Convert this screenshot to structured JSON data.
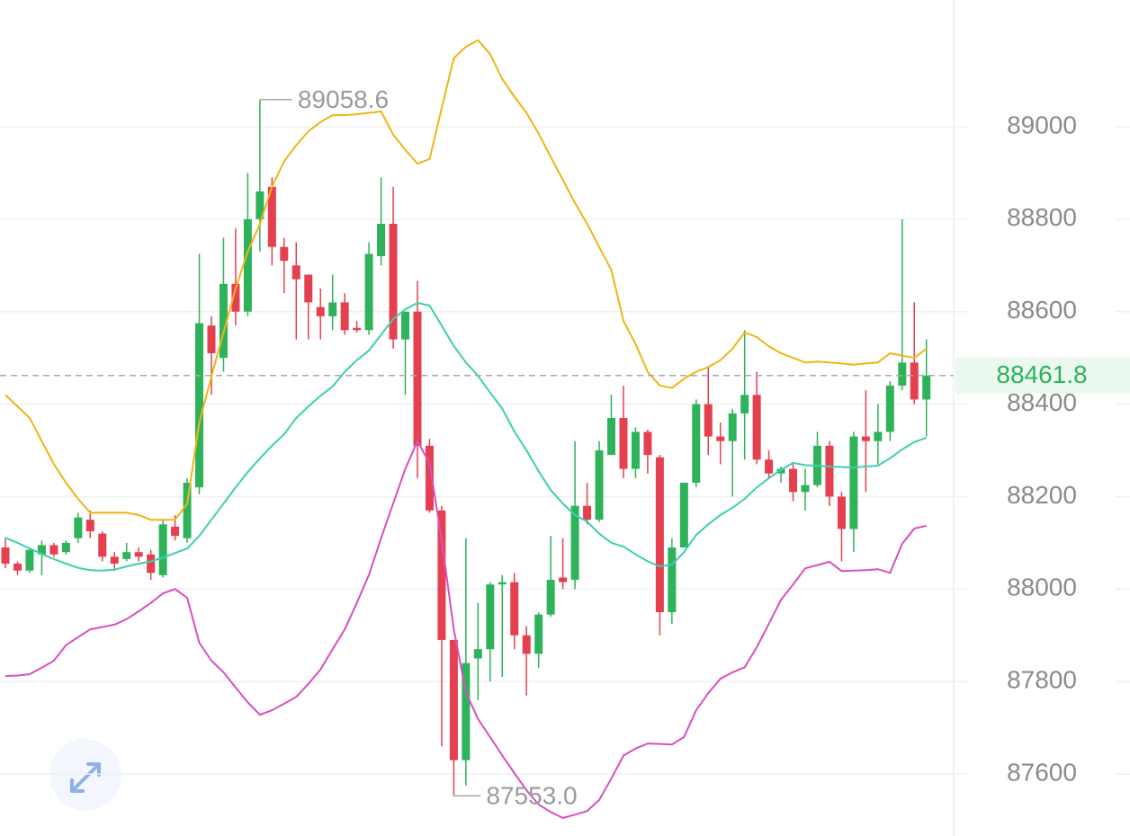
{
  "chart_data": {
    "type": "candlestick",
    "up_color": "#2eb35a",
    "down_color": "#e5404f",
    "ylim": [
      87466,
      89274
    ],
    "yticks": [
      87600,
      87800,
      88000,
      88200,
      88400,
      88600,
      88800,
      89000
    ],
    "grid": true,
    "open": [
      88090,
      88055,
      88040,
      88075,
      88095,
      88080,
      88110,
      88150,
      88120,
      88070,
      88065,
      88080,
      88075,
      88030,
      88135,
      88110,
      88220,
      88570,
      88500,
      88660,
      88600,
      88800,
      88870,
      88740,
      88700,
      88680,
      88610,
      88590,
      88620,
      88565,
      88560,
      88720,
      88790,
      88540,
      88600,
      88310,
      88170,
      87890,
      87630,
      87850,
      87870,
      88010,
      88015,
      87900,
      87860,
      87945,
      88025,
      88020,
      88180,
      88150,
      88290,
      88370,
      88260,
      88340,
      88285,
      87950,
      88090,
      88230,
      88400,
      88330,
      88320,
      88380,
      88420,
      88280,
      88250,
      88260,
      88210,
      88225,
      88310,
      88200,
      88130,
      88330,
      88320,
      88340,
      88440,
      88490,
      88410
    ],
    "high": [
      88110,
      88060,
      88090,
      88105,
      88100,
      88105,
      88165,
      88170,
      88125,
      88080,
      88100,
      88090,
      88085,
      88150,
      88160,
      88240,
      88725,
      88590,
      88760,
      88780,
      88900,
      89058.6,
      88890,
      88760,
      88750,
      88680,
      88650,
      88680,
      88640,
      88580,
      88750,
      88890,
      88870,
      88600,
      88667,
      88325,
      88180,
      87890,
      88110,
      87970,
      88015,
      88030,
      88035,
      87920,
      87950,
      88115,
      88110,
      88320,
      88230,
      88320,
      88420,
      88440,
      88350,
      88345,
      88290,
      88110,
      88230,
      88410,
      88480,
      88360,
      88390,
      88560,
      88470,
      88300,
      88265,
      88270,
      88260,
      88340,
      88320,
      88210,
      88340,
      88430,
      88400,
      88450,
      88800,
      88620,
      88540
    ],
    "low": [
      88045,
      88030,
      88035,
      88030,
      88070,
      88075,
      88100,
      88110,
      88060,
      88040,
      88060,
      88060,
      88020,
      88025,
      88105,
      88100,
      88205,
      88420,
      88470,
      88570,
      88590,
      88730,
      88700,
      88640,
      88540,
      88540,
      88540,
      88560,
      88550,
      88555,
      88550,
      88700,
      88520,
      88420,
      88240,
      88165,
      87660,
      87553,
      87575,
      87760,
      87800,
      87810,
      87870,
      87770,
      87830,
      87940,
      88000,
      88000,
      88140,
      88145,
      88290,
      88240,
      88240,
      88250,
      87900,
      87925,
      88090,
      88220,
      88290,
      88270,
      88200,
      88280,
      88270,
      88240,
      88230,
      88190,
      88170,
      88220,
      88180,
      88060,
      88080,
      88210,
      88270,
      88320,
      88430,
      88400,
      88330
    ],
    "close": [
      88055,
      88040,
      88085,
      88095,
      88075,
      88100,
      88155,
      88125,
      88070,
      88055,
      88080,
      88070,
      88035,
      88140,
      88115,
      88230,
      88575,
      88510,
      88660,
      88600,
      88800,
      88860,
      88740,
      88710,
      88670,
      88620,
      88590,
      88620,
      88560,
      88560,
      88725,
      88790,
      88540,
      88600,
      88310,
      88170,
      87890,
      87630,
      87840,
      87870,
      88010,
      88015,
      87900,
      87860,
      87945,
      88020,
      88015,
      88180,
      88150,
      88300,
      88370,
      88260,
      88340,
      88290,
      87950,
      88090,
      88230,
      88400,
      88330,
      88320,
      88380,
      88420,
      88280,
      88250,
      88260,
      88210,
      88225,
      88310,
      88200,
      88130,
      88330,
      88320,
      88340,
      88440,
      88490,
      88410,
      88461.8
    ],
    "lines": [
      {
        "color": "#f0b414",
        "values": [
          88420,
          88395,
          88370,
          88320,
          88270,
          88230,
          88195,
          88165,
          88165,
          88165,
          88165,
          88160,
          88150,
          88150,
          88150,
          88185,
          88360,
          88460,
          88555,
          88650,
          88730,
          88790,
          88870,
          88925,
          88960,
          88990,
          89010,
          89025,
          89025,
          89027,
          89030,
          89033,
          88983,
          88950,
          88920,
          88930,
          89040,
          89148,
          89173,
          89187,
          89157,
          89103,
          89065,
          89030,
          88985,
          88935,
          88885,
          88835,
          88790,
          88740,
          88690,
          88580,
          88530,
          88470,
          88440,
          88435,
          88455,
          88470,
          88480,
          88495,
          88520,
          88555,
          88545,
          88525,
          88510,
          88500,
          88490,
          88492,
          88490,
          88488,
          88485,
          88488,
          88490,
          88510,
          88505,
          88500,
          88520
        ]
      },
      {
        "color": "#3ccfb0",
        "values": [
          88111,
          88100,
          88088,
          88076,
          88065,
          88055,
          88046,
          88041,
          88040,
          88042,
          88049,
          88055,
          88060,
          88068,
          88078,
          88088,
          88115,
          88150,
          88185,
          88220,
          88253,
          88283,
          88310,
          88335,
          88370,
          88395,
          88418,
          88438,
          88470,
          88495,
          88516,
          88550,
          88584,
          88605,
          88619,
          88613,
          88570,
          88526,
          88490,
          88461,
          88425,
          88390,
          88341,
          88300,
          88255,
          88214,
          88185,
          88160,
          88146,
          88120,
          88100,
          88092,
          88075,
          88060,
          88049,
          88053,
          88080,
          88117,
          88140,
          88160,
          88176,
          88195,
          88220,
          88240,
          88258,
          88273,
          88268,
          88267,
          88265,
          88264,
          88263,
          88265,
          88267,
          88283,
          88302,
          88318,
          88327
        ]
      },
      {
        "color": "#d84fc0",
        "values": [
          87812,
          87813,
          87816,
          87830,
          87845,
          87879,
          87896,
          87913,
          87918,
          87923,
          87935,
          87952,
          87970,
          87991,
          88000,
          87981,
          87884,
          87845,
          87820,
          87787,
          87755,
          87728,
          87738,
          87752,
          87767,
          87795,
          87826,
          87870,
          87913,
          87970,
          88031,
          88110,
          88185,
          88260,
          88320,
          88272,
          88107,
          87913,
          87777,
          87719,
          87680,
          87640,
          87602,
          87565,
          87534,
          87518,
          87505,
          87512,
          87520,
          87544,
          87590,
          87640,
          87655,
          87666,
          87665,
          87664,
          87680,
          87738,
          87775,
          87806,
          87820,
          87831,
          87874,
          87925,
          87977,
          88010,
          88045,
          88052,
          88059,
          88039,
          88040,
          88041,
          88043,
          88035,
          88098,
          88131,
          88137
        ]
      }
    ],
    "high_label": 89058.6,
    "low_label": {
      "value": 87553,
      "label": "87553.0"
    },
    "last_price": 88461.8
  }
}
